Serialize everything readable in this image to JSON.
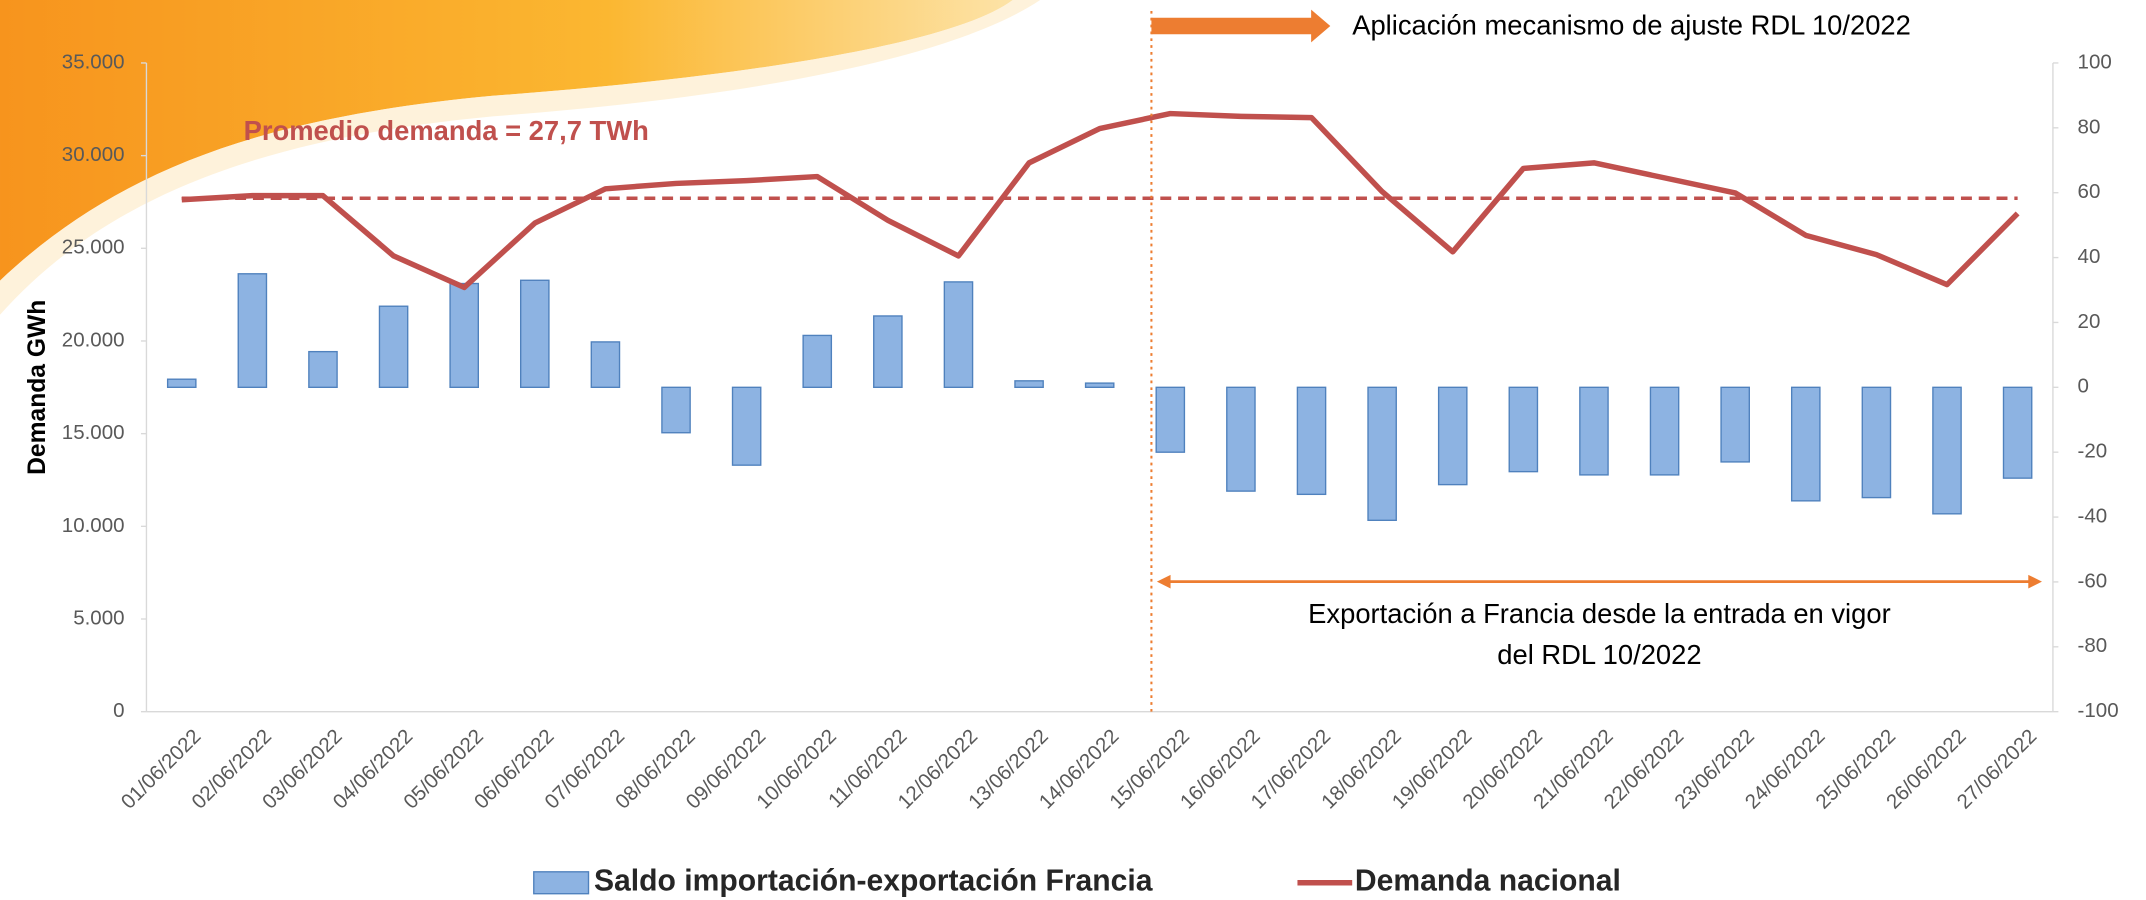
{
  "chart_data": {
    "type": "bar",
    "y_label": "Demanda GWh",
    "categories": [
      "01/06/2022",
      "02/06/2022",
      "03/06/2022",
      "04/06/2022",
      "05/06/2022",
      "06/06/2022",
      "07/06/2022",
      "08/06/2022",
      "09/06/2022",
      "10/06/2022",
      "11/06/2022",
      "12/06/2022",
      "13/06/2022",
      "14/06/2022",
      "15/06/2022",
      "16/06/2022",
      "17/06/2022",
      "18/06/2022",
      "19/06/2022",
      "20/06/2022",
      "21/06/2022",
      "22/06/2022",
      "23/06/2022",
      "24/06/2022",
      "25/06/2022",
      "26/06/2022",
      "27/06/2022"
    ],
    "series": [
      {
        "name": "Saldo importación-exportación Francia",
        "type": "bar",
        "axis": "y2",
        "color": "#8db3e2",
        "edge_color": "#4f81bd",
        "values": [
          2.5,
          35,
          11,
          25,
          32,
          33,
          14,
          -14,
          -24,
          16,
          22,
          32.5,
          2,
          1.3,
          -20,
          -32,
          -33,
          -41,
          -30,
          -26,
          -27,
          -27,
          -23,
          -35,
          -34,
          -39,
          -28
        ]
      },
      {
        "name": "Demanda nacional",
        "type": "line",
        "axis": "y",
        "color": "#c0504d",
        "values": [
          27620,
          27840,
          27840,
          24590,
          22890,
          26360,
          28210,
          28500,
          28650,
          28870,
          26510,
          24590,
          29610,
          31460,
          32270,
          32120,
          32050,
          28060,
          24810,
          29310,
          29610,
          28800,
          27990,
          25700,
          24660,
          23040,
          26880
        ]
      }
    ],
    "ylim": [
      0,
      35000
    ],
    "yticks": [
      {
        "value": 0,
        "label": "0"
      },
      {
        "value": 5000,
        "label": "5.000"
      },
      {
        "value": 10000,
        "label": "10.000"
      },
      {
        "value": 15000,
        "label": "15.000"
      },
      {
        "value": 20000,
        "label": "20.000"
      },
      {
        "value": 25000,
        "label": "25.000"
      },
      {
        "value": 30000,
        "label": "30.000"
      },
      {
        "value": 35000,
        "label": "35.000"
      }
    ],
    "y2lim": [
      -100,
      100
    ],
    "y2ticks": [
      -100,
      -80,
      -60,
      -40,
      -20,
      0,
      20,
      40,
      60,
      80,
      100
    ],
    "reference_line": {
      "label": "Promedio demanda = 27,7 TWh",
      "value": 27700,
      "color": "#c0504d"
    },
    "vline": {
      "category": "15/06/2022",
      "label": "Aplicación mecanismo de ajuste RDL 10/2022",
      "color": "#ed7d31"
    },
    "span": {
      "from": "15/06/2022",
      "to": "27/06/2022",
      "lines": [
        "Exportación a Francia desde la entrada en vigor",
        "del RDL 10/2022"
      ],
      "color": "#ed7d31"
    },
    "legend": "bottom"
  }
}
